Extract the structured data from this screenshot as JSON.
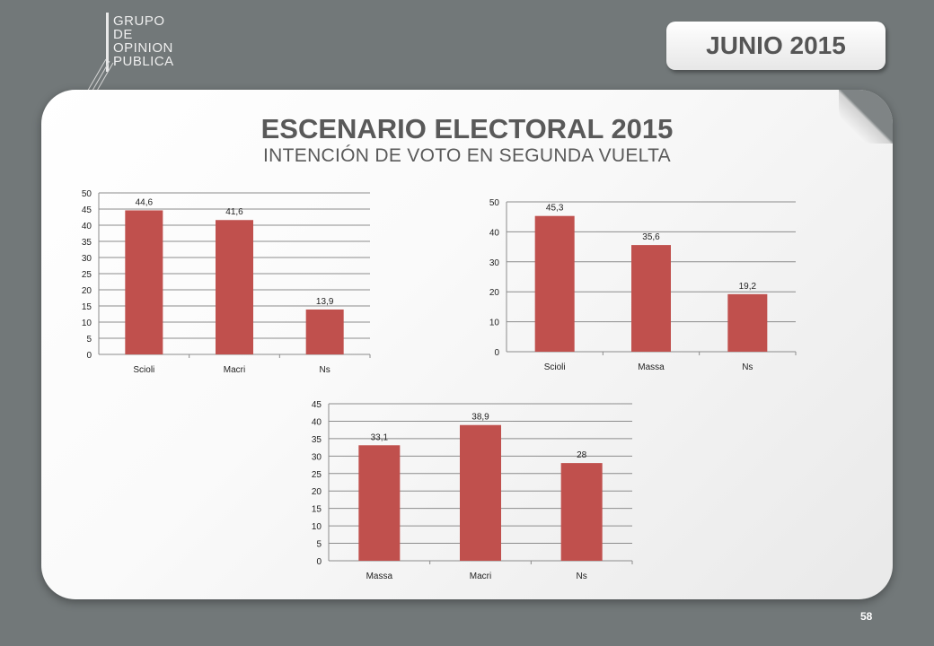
{
  "logo": {
    "lines": [
      "GRUPO",
      "DE",
      "OPINION",
      "PUBLICA"
    ]
  },
  "header": {
    "date": "JUNIO 2015"
  },
  "slide": {
    "title": "ESCENARIO ELECTORAL 2015",
    "subtitle": "INTENCIÓN DE VOTO EN SEGUNDA VUELTA",
    "page_number": "58"
  },
  "colors": {
    "bar": "#c0504d",
    "background": "#727879"
  },
  "chart_data": [
    {
      "type": "bar",
      "categories": [
        "Scioli",
        "Macri",
        "Ns"
      ],
      "values": [
        44.6,
        41.6,
        13.9
      ],
      "labels": [
        "44,6",
        "41,6",
        "13,9"
      ],
      "ylim": [
        0,
        50
      ],
      "yticks": [
        0,
        5,
        10,
        15,
        20,
        25,
        30,
        35,
        40,
        45,
        50
      ],
      "grid": true,
      "title": "",
      "xlabel": "",
      "ylabel": ""
    },
    {
      "type": "bar",
      "categories": [
        "Scioli",
        "Massa",
        "Ns"
      ],
      "values": [
        45.3,
        35.6,
        19.2
      ],
      "labels": [
        "45,3",
        "35,6",
        "19,2"
      ],
      "ylim": [
        0,
        50
      ],
      "yticks": [
        0,
        10,
        20,
        30,
        40,
        50
      ],
      "grid": true,
      "title": "",
      "xlabel": "",
      "ylabel": ""
    },
    {
      "type": "bar",
      "categories": [
        "Massa",
        "Macri",
        "Ns"
      ],
      "values": [
        33.1,
        38.9,
        28
      ],
      "labels": [
        "33,1",
        "38,9",
        "28"
      ],
      "ylim": [
        0,
        45
      ],
      "yticks": [
        0,
        5,
        10,
        15,
        20,
        25,
        30,
        35,
        40,
        45
      ],
      "grid": true,
      "title": "",
      "xlabel": "",
      "ylabel": ""
    }
  ]
}
